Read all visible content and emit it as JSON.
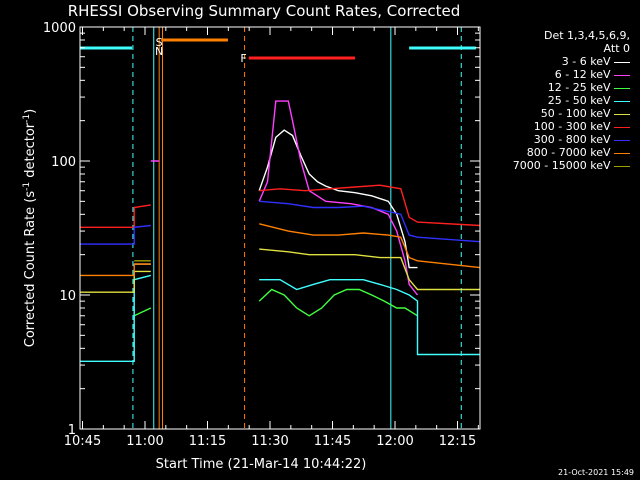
{
  "chart_data": {
    "type": "line",
    "title": "RHESSI Observing Summary Count Rates, Corrected",
    "xlabel": "Start Time (21-Mar-14 10:44:22)",
    "ylabel_main": "Corrected Count Rate (s",
    "ylabel_sup1": "-1",
    "ylabel_mid": " detector",
    "ylabel_sup2": "-1",
    "ylabel_end": ")",
    "y_scale": "log",
    "ylim": [
      1,
      1000
    ],
    "xlim_minutes": [
      0,
      96
    ],
    "x_ticks": [
      {
        "label": "10:45",
        "m": 0.6
      },
      {
        "label": "11:00",
        "m": 15.6
      },
      {
        "label": "11:15",
        "m": 30.6
      },
      {
        "label": "11:30",
        "m": 45.6
      },
      {
        "label": "11:45",
        "m": 60.6
      },
      {
        "label": "12:00",
        "m": 75.6
      },
      {
        "label": "12:15",
        "m": 90.6
      }
    ],
    "y_ticks": [
      {
        "label": "1",
        "v": 1
      },
      {
        "label": "10",
        "v": 10
      },
      {
        "label": "100",
        "v": 100
      },
      {
        "label": "1000",
        "v": 1000
      }
    ],
    "legend_header": [
      "Det 1,3,4,5,6,9,",
      "Att 0"
    ],
    "series": [
      {
        "name": "3 - 6 keV",
        "color": "#ffffff",
        "points": [
          [
            0,
            -1
          ],
          [
            13,
            -1
          ],
          [
            13,
            17
          ],
          [
            17,
            17
          ],
          [
            17,
            -1
          ],
          [
            43,
            -1
          ],
          [
            43,
            60
          ],
          [
            45,
            90
          ],
          [
            47,
            150
          ],
          [
            49,
            170
          ],
          [
            51,
            155
          ],
          [
            53,
            110
          ],
          [
            55,
            80
          ],
          [
            57,
            70
          ],
          [
            59,
            65
          ],
          [
            62,
            60
          ],
          [
            66,
            58
          ],
          [
            70,
            55
          ],
          [
            74,
            50
          ],
          [
            76,
            40
          ],
          [
            78,
            25
          ],
          [
            79,
            16
          ],
          [
            81,
            16
          ],
          [
            81,
            -1
          ],
          [
            96,
            -1
          ]
        ]
      },
      {
        "name": "6 - 12 keV",
        "color": "#ff40ff",
        "points": [
          [
            0,
            -1
          ],
          [
            17,
            -1
          ],
          [
            17,
            100
          ],
          [
            19,
            100
          ],
          [
            19,
            -1
          ],
          [
            43,
            -1
          ],
          [
            43,
            50
          ],
          [
            45,
            70
          ],
          [
            47,
            280
          ],
          [
            50,
            280
          ],
          [
            51,
            200
          ],
          [
            53,
            100
          ],
          [
            55,
            60
          ],
          [
            59,
            50
          ],
          [
            65,
            48
          ],
          [
            70,
            45
          ],
          [
            74,
            40
          ],
          [
            76,
            30
          ],
          [
            78,
            18
          ],
          [
            79,
            12
          ],
          [
            81,
            10
          ],
          [
            81,
            -1
          ],
          [
            96,
            -1
          ]
        ]
      },
      {
        "name": "12 - 25 keV",
        "color": "#40ff40",
        "points": [
          [
            0,
            -1
          ],
          [
            13,
            -1
          ],
          [
            13,
            7
          ],
          [
            17,
            8
          ],
          [
            17,
            -1
          ],
          [
            43,
            -1
          ],
          [
            43,
            9
          ],
          [
            46,
            11
          ],
          [
            49,
            10
          ],
          [
            52,
            8
          ],
          [
            55,
            7
          ],
          [
            58,
            8
          ],
          [
            61,
            10
          ],
          [
            64,
            11
          ],
          [
            67,
            11
          ],
          [
            70,
            10
          ],
          [
            73,
            9
          ],
          [
            76,
            8
          ],
          [
            78,
            8
          ],
          [
            81,
            7
          ],
          [
            81,
            -1
          ],
          [
            96,
            -1
          ]
        ]
      },
      {
        "name": "25 - 50 keV",
        "color": "#40ffff",
        "points": [
          [
            0,
            3.2
          ],
          [
            13,
            3.2
          ],
          [
            13,
            13
          ],
          [
            17,
            14
          ],
          [
            17,
            -1
          ],
          [
            43,
            -1
          ],
          [
            43,
            13
          ],
          [
            48,
            13
          ],
          [
            52,
            11
          ],
          [
            56,
            12
          ],
          [
            60,
            13
          ],
          [
            64,
            13
          ],
          [
            68,
            13
          ],
          [
            72,
            12
          ],
          [
            76,
            11
          ],
          [
            79,
            10
          ],
          [
            81,
            9
          ],
          [
            81,
            3.6
          ],
          [
            96,
            3.6
          ]
        ]
      },
      {
        "name": "50 - 100 keV",
        "color": "#e0e040",
        "points": [
          [
            0,
            10.5
          ],
          [
            13,
            10.5
          ],
          [
            13,
            15
          ],
          [
            17,
            15
          ],
          [
            17,
            -1
          ],
          [
            43,
            -1
          ],
          [
            43,
            22
          ],
          [
            50,
            21
          ],
          [
            55,
            20
          ],
          [
            60,
            20
          ],
          [
            66,
            20
          ],
          [
            72,
            19
          ],
          [
            77,
            19
          ],
          [
            79,
            13
          ],
          [
            81,
            11
          ],
          [
            96,
            11
          ]
        ]
      },
      {
        "name": "100 - 300 keV",
        "color": "#ff2020",
        "points": [
          [
            0,
            32
          ],
          [
            13,
            32
          ],
          [
            13,
            45
          ],
          [
            17,
            47
          ],
          [
            17,
            -1
          ],
          [
            43,
            -1
          ],
          [
            43,
            60
          ],
          [
            48,
            62
          ],
          [
            54,
            60
          ],
          [
            60,
            62
          ],
          [
            66,
            64
          ],
          [
            72,
            66
          ],
          [
            77,
            62
          ],
          [
            79,
            38
          ],
          [
            81,
            35
          ],
          [
            96,
            33
          ]
        ]
      },
      {
        "name": "300 - 800 keV",
        "color": "#3030ff",
        "points": [
          [
            0,
            24
          ],
          [
            13,
            24
          ],
          [
            13,
            32
          ],
          [
            17,
            33
          ],
          [
            17,
            -1
          ],
          [
            43,
            -1
          ],
          [
            43,
            50
          ],
          [
            50,
            48
          ],
          [
            56,
            45
          ],
          [
            62,
            45
          ],
          [
            68,
            46
          ],
          [
            74,
            42
          ],
          [
            77,
            40
          ],
          [
            79,
            28
          ],
          [
            81,
            27
          ],
          [
            96,
            25
          ]
        ]
      },
      {
        "name": "800 - 7000 keV",
        "color": "#ff8000",
        "points": [
          [
            0,
            14
          ],
          [
            13,
            14
          ],
          [
            13,
            17
          ],
          [
            17,
            17
          ],
          [
            17,
            -1
          ],
          [
            43,
            -1
          ],
          [
            43,
            34
          ],
          [
            50,
            30
          ],
          [
            56,
            28
          ],
          [
            62,
            28
          ],
          [
            68,
            29
          ],
          [
            74,
            28
          ],
          [
            77,
            27
          ],
          [
            79,
            19
          ],
          [
            81,
            18
          ],
          [
            96,
            16
          ]
        ]
      },
      {
        "name": "7000 - 15000 keV",
        "color": "#a0a000",
        "points": [
          [
            0,
            -1
          ],
          [
            13,
            -1
          ],
          [
            13,
            18
          ],
          [
            17,
            18
          ],
          [
            17,
            -1
          ],
          [
            96,
            -1
          ]
        ]
      }
    ],
    "annotations": {
      "S_label": "S",
      "N_label": "N",
      "F_label": "F",
      "flag_colors": {
        "saa": "#ff8000",
        "night": "#40ffff",
        "flare": "#ff2020"
      }
    },
    "timestamp": "21-Oct-2021 15:49"
  }
}
